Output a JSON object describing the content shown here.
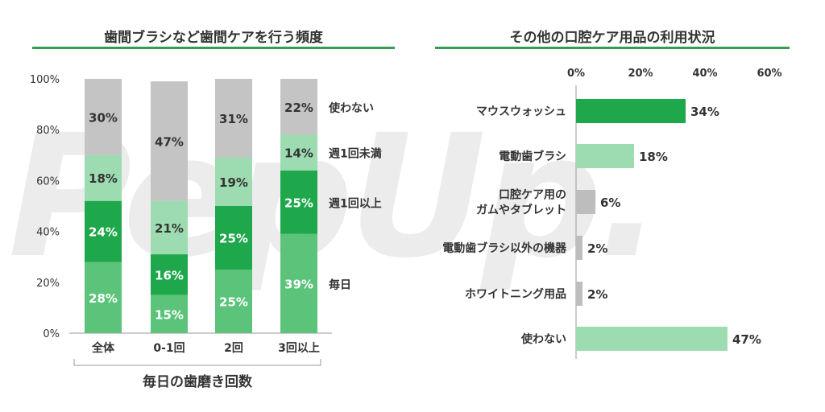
{
  "watermark": "PepUp.",
  "colors": {
    "title_rule": "#2e9e4f",
    "daily": "#5cc47a",
    "weekly_plus": "#1ea84b",
    "weekly_minus": "#9ddcb0",
    "never": "#c4c4c4",
    "bar_hi": "#1ea84b",
    "bar_mid": "#9ddcb0",
    "bar_grey": "#bdbdbd",
    "text": "#333333"
  },
  "left": {
    "title": "歯間ブラシなど歯間ケアを行う頻度",
    "group_label": "毎日の歯磨き回数"
  },
  "right": {
    "title": "その他の口腔ケア用品の利用状況"
  },
  "chart_data": [
    {
      "type": "bar",
      "stacked": true,
      "title": "歯間ブラシなど歯間ケアを行う頻度",
      "xlabel": "毎日の歯磨き回数",
      "ylabel": "",
      "ylim": [
        0,
        100
      ],
      "yticks": [
        "0%",
        "20%",
        "40%",
        "60%",
        "80%",
        "100%"
      ],
      "categories": [
        "全体",
        "0-1回",
        "2回",
        "3回以上"
      ],
      "series": [
        {
          "name": "毎日",
          "values": [
            28,
            15,
            25,
            39
          ],
          "labels": [
            "28%",
            "15%",
            "25%",
            "39%"
          ]
        },
        {
          "name": "週1回以上",
          "values": [
            24,
            16,
            25,
            25
          ],
          "labels": [
            "24%",
            "16%",
            "25%",
            "25%"
          ]
        },
        {
          "name": "週1回未満",
          "values": [
            18,
            21,
            19,
            14
          ],
          "labels": [
            "18%",
            "21%",
            "19%",
            "14%"
          ]
        },
        {
          "name": "使わない",
          "values": [
            30,
            47,
            31,
            22
          ],
          "labels": [
            "30%",
            "47%",
            "31%",
            "22%"
          ]
        }
      ]
    },
    {
      "type": "bar",
      "orientation": "horizontal",
      "title": "その他の口腔ケア用品の利用状況",
      "xlim": [
        0,
        60
      ],
      "xticks": [
        "0%",
        "20%",
        "40%",
        "60%"
      ],
      "categories": [
        [
          "マウスウォッシュ"
        ],
        [
          "電動歯ブラシ"
        ],
        [
          "口腔ケア用の",
          "ガムやタブレット"
        ],
        [
          "電動歯ブラシ以外の機器"
        ],
        [
          "ホワイトニング用品"
        ],
        [
          "使わない"
        ]
      ],
      "values": [
        34,
        18,
        6,
        2,
        2,
        47
      ],
      "labels": [
        "34%",
        "18%",
        "6%",
        "2%",
        "2%",
        "47%"
      ],
      "bar_colors": [
        "bar_hi",
        "bar_mid",
        "bar_grey",
        "bar_grey",
        "bar_grey",
        "bar_mid"
      ]
    }
  ]
}
